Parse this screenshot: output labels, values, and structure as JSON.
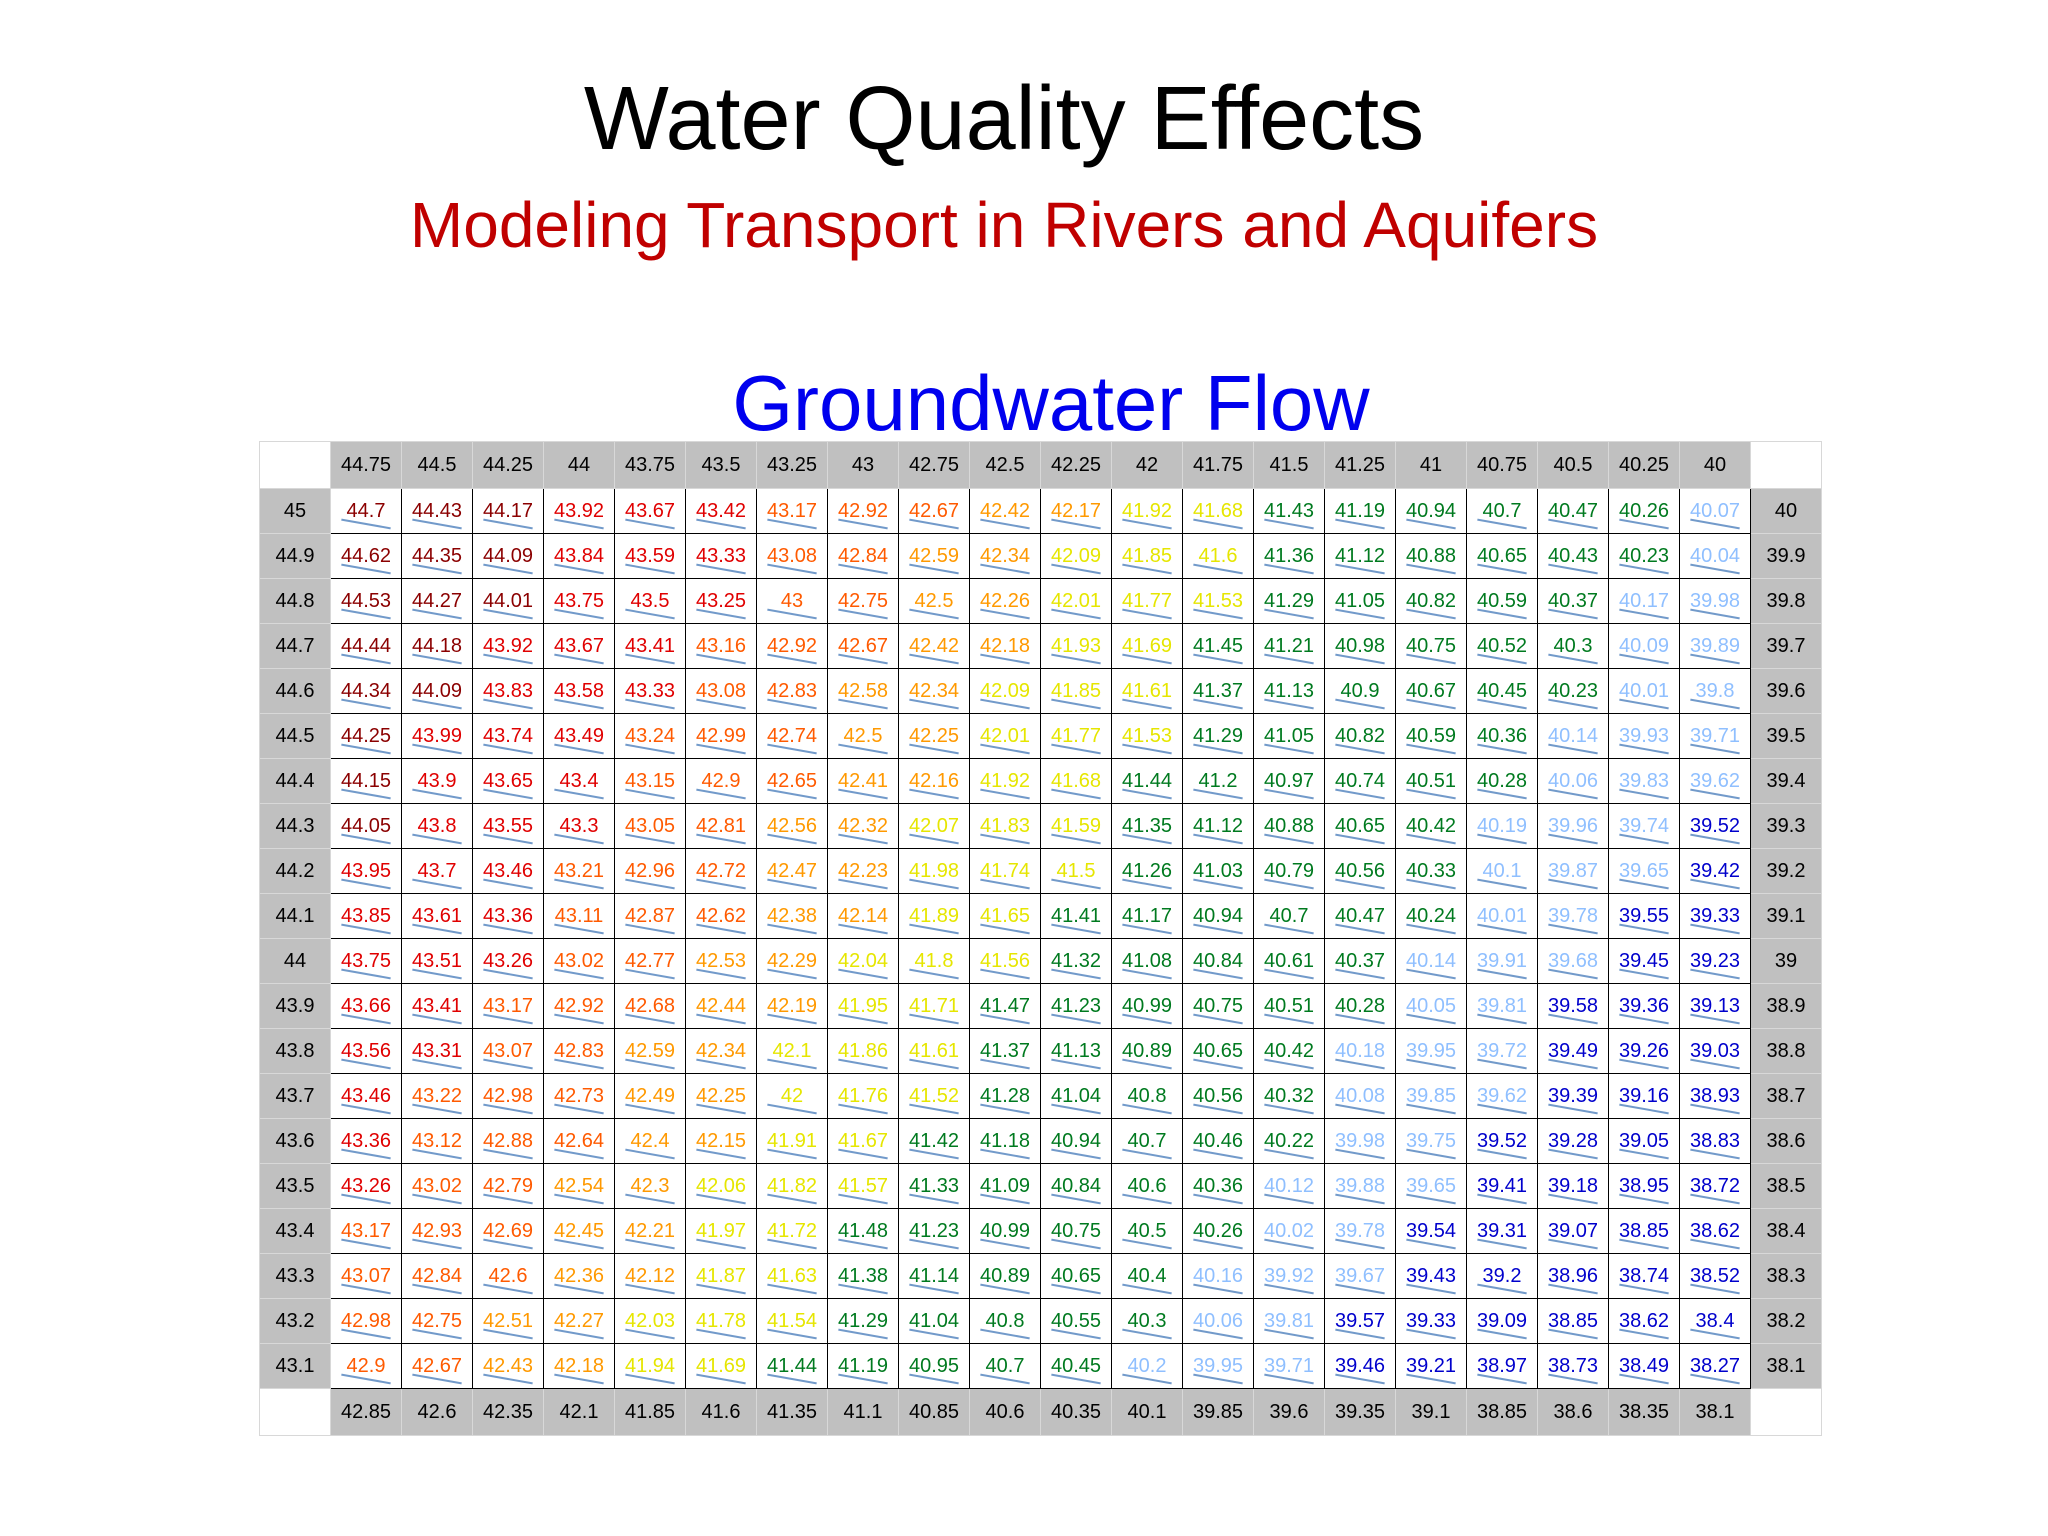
{
  "title": "Water Quality Effects",
  "subtitle": "Modeling Transport in Rivers and Aquifers",
  "heading": "Groundwater Flow",
  "table": {
    "top_row": [
      44.75,
      44.5,
      44.25,
      44,
      43.75,
      43.5,
      43.25,
      43,
      42.75,
      42.5,
      42.25,
      42,
      41.75,
      41.5,
      41.25,
      41,
      40.75,
      40.5,
      40.25,
      40
    ],
    "bottom_row": [
      42.85,
      42.6,
      42.35,
      42.1,
      41.85,
      41.6,
      41.35,
      41.1,
      40.85,
      40.6,
      40.35,
      40.1,
      39.85,
      39.6,
      39.35,
      39.1,
      38.85,
      38.6,
      38.35,
      38.1
    ],
    "left_col": [
      45,
      44.9,
      44.8,
      44.7,
      44.6,
      44.5,
      44.4,
      44.3,
      44.2,
      44.1,
      44,
      43.9,
      43.8,
      43.7,
      43.6,
      43.5,
      43.4,
      43.3,
      43.2,
      43.1
    ],
    "right_col": [
      40,
      39.9,
      39.8,
      39.7,
      39.6,
      39.5,
      39.4,
      39.3,
      39.2,
      39.1,
      39,
      38.9,
      38.8,
      38.7,
      38.6,
      38.5,
      38.4,
      38.3,
      38.2,
      38.1
    ],
    "rows": [
      [
        44.7,
        44.43,
        44.17,
        43.92,
        43.67,
        43.42,
        43.17,
        42.92,
        42.67,
        42.42,
        42.17,
        41.92,
        41.68,
        41.43,
        41.19,
        40.94,
        40.7,
        40.47,
        40.26,
        40.07
      ],
      [
        44.62,
        44.35,
        44.09,
        43.84,
        43.59,
        43.33,
        43.08,
        42.84,
        42.59,
        42.34,
        42.09,
        41.85,
        41.6,
        41.36,
        41.12,
        40.88,
        40.65,
        40.43,
        40.23,
        40.04
      ],
      [
        44.53,
        44.27,
        44.01,
        43.75,
        43.5,
        43.25,
        43,
        42.75,
        42.5,
        42.26,
        42.01,
        41.77,
        41.53,
        41.29,
        41.05,
        40.82,
        40.59,
        40.37,
        40.17,
        39.98
      ],
      [
        44.44,
        44.18,
        43.92,
        43.67,
        43.41,
        43.16,
        42.92,
        42.67,
        42.42,
        42.18,
        41.93,
        41.69,
        41.45,
        41.21,
        40.98,
        40.75,
        40.52,
        40.3,
        40.09,
        39.89
      ],
      [
        44.34,
        44.09,
        43.83,
        43.58,
        43.33,
        43.08,
        42.83,
        42.58,
        42.34,
        42.09,
        41.85,
        41.61,
        41.37,
        41.13,
        40.9,
        40.67,
        40.45,
        40.23,
        40.01,
        39.8
      ],
      [
        44.25,
        43.99,
        43.74,
        43.49,
        43.24,
        42.99,
        42.74,
        42.5,
        42.25,
        42.01,
        41.77,
        41.53,
        41.29,
        41.05,
        40.82,
        40.59,
        40.36,
        40.14,
        39.93,
        39.71
      ],
      [
        44.15,
        43.9,
        43.65,
        43.4,
        43.15,
        42.9,
        42.65,
        42.41,
        42.16,
        41.92,
        41.68,
        41.44,
        41.2,
        40.97,
        40.74,
        40.51,
        40.28,
        40.06,
        39.83,
        39.62
      ],
      [
        44.05,
        43.8,
        43.55,
        43.3,
        43.05,
        42.81,
        42.56,
        42.32,
        42.07,
        41.83,
        41.59,
        41.35,
        41.12,
        40.88,
        40.65,
        40.42,
        40.19,
        39.96,
        39.74,
        39.52
      ],
      [
        43.95,
        43.7,
        43.46,
        43.21,
        42.96,
        42.72,
        42.47,
        42.23,
        41.98,
        41.74,
        41.5,
        41.26,
        41.03,
        40.79,
        40.56,
        40.33,
        40.1,
        39.87,
        39.65,
        39.42
      ],
      [
        43.85,
        43.61,
        43.36,
        43.11,
        42.87,
        42.62,
        42.38,
        42.14,
        41.89,
        41.65,
        41.41,
        41.17,
        40.94,
        40.7,
        40.47,
        40.24,
        40.01,
        39.78,
        39.55,
        39.33
      ],
      [
        43.75,
        43.51,
        43.26,
        43.02,
        42.77,
        42.53,
        42.29,
        42.04,
        41.8,
        41.56,
        41.32,
        41.08,
        40.84,
        40.61,
        40.37,
        40.14,
        39.91,
        39.68,
        39.45,
        39.23
      ],
      [
        43.66,
        43.41,
        43.17,
        42.92,
        42.68,
        42.44,
        42.19,
        41.95,
        41.71,
        41.47,
        41.23,
        40.99,
        40.75,
        40.51,
        40.28,
        40.05,
        39.81,
        39.58,
        39.36,
        39.13
      ],
      [
        43.56,
        43.31,
        43.07,
        42.83,
        42.59,
        42.34,
        42.1,
        41.86,
        41.61,
        41.37,
        41.13,
        40.89,
        40.65,
        40.42,
        40.18,
        39.95,
        39.72,
        39.49,
        39.26,
        39.03
      ],
      [
        43.46,
        43.22,
        42.98,
        42.73,
        42.49,
        42.25,
        42,
        41.76,
        41.52,
        41.28,
        41.04,
        40.8,
        40.56,
        40.32,
        40.08,
        39.85,
        39.62,
        39.39,
        39.16,
        38.93
      ],
      [
        43.36,
        43.12,
        42.88,
        42.64,
        42.4,
        42.15,
        41.91,
        41.67,
        41.42,
        41.18,
        40.94,
        40.7,
        40.46,
        40.22,
        39.98,
        39.75,
        39.52,
        39.28,
        39.05,
        38.83
      ],
      [
        43.26,
        43.02,
        42.79,
        42.54,
        42.3,
        42.06,
        41.82,
        41.57,
        41.33,
        41.09,
        40.84,
        40.6,
        40.36,
        40.12,
        39.88,
        39.65,
        39.41,
        39.18,
        38.95,
        38.72
      ],
      [
        43.17,
        42.93,
        42.69,
        42.45,
        42.21,
        41.97,
        41.72,
        41.48,
        41.23,
        40.99,
        40.75,
        40.5,
        40.26,
        40.02,
        39.78,
        39.54,
        39.31,
        39.07,
        38.85,
        38.62
      ],
      [
        43.07,
        42.84,
        42.6,
        42.36,
        42.12,
        41.87,
        41.63,
        41.38,
        41.14,
        40.89,
        40.65,
        40.4,
        40.16,
        39.92,
        39.67,
        39.43,
        39.2,
        38.96,
        38.74,
        38.52
      ],
      [
        42.98,
        42.75,
        42.51,
        42.27,
        42.03,
        41.78,
        41.54,
        41.29,
        41.04,
        40.8,
        40.55,
        40.3,
        40.06,
        39.81,
        39.57,
        39.33,
        39.09,
        38.85,
        38.62,
        38.4
      ],
      [
        42.9,
        42.67,
        42.43,
        42.18,
        41.94,
        41.69,
        41.44,
        41.19,
        40.95,
        40.7,
        40.45,
        40.2,
        39.95,
        39.71,
        39.46,
        39.21,
        38.97,
        38.73,
        38.49,
        38.27
      ]
    ],
    "color_bands": [
      {
        "min": 44,
        "color": "#8b0000"
      },
      {
        "min": 43.25,
        "color": "#e00000"
      },
      {
        "min": 42.6,
        "color": "#ff5a00"
      },
      {
        "min": 42.12,
        "color": "#ff9900"
      },
      {
        "min": 41.5,
        "color": "#e6e600"
      },
      {
        "min": 40.21,
        "color": "#007a1f"
      },
      {
        "min": 39.6,
        "color": "#8fbfff"
      },
      {
        "color": "#0000cc"
      }
    ]
  }
}
